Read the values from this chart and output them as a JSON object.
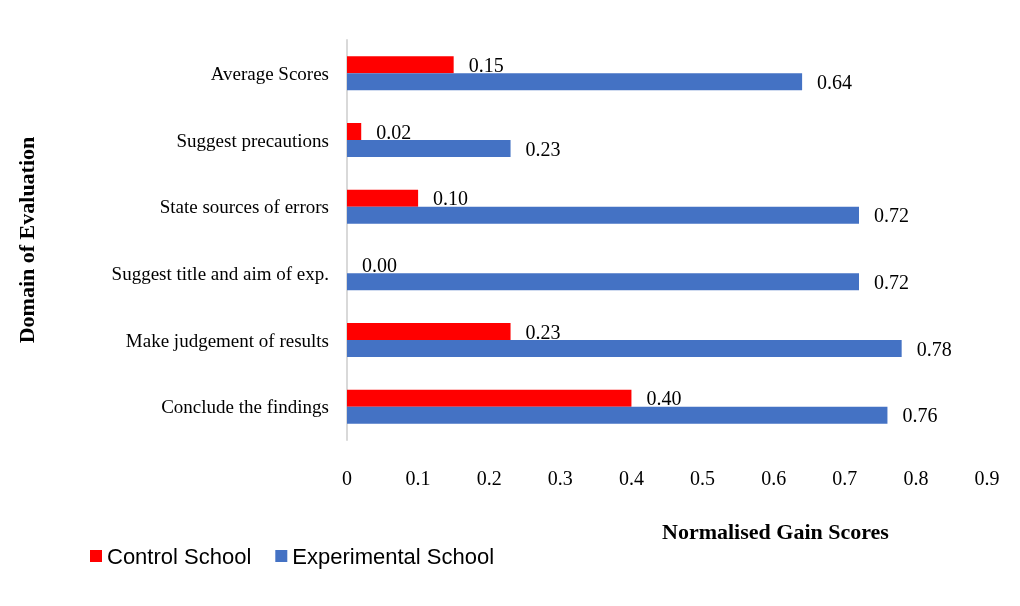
{
  "chart_data": {
    "type": "bar",
    "orientation": "horizontal",
    "xlabel": "Normalised Gain Scores",
    "ylabel": "Domain of Evaluation",
    "categories": [
      "Average Scores",
      "Suggest precautions",
      "State sources of errors",
      "Suggest title and aim of exp.",
      "Make judgement of results",
      "Conclude the findings"
    ],
    "series": [
      {
        "name": "Control School",
        "color": "#ff0000",
        "values": [
          0.15,
          0.02,
          0.1,
          0.0,
          0.23,
          0.4
        ],
        "value_labels": [
          "0.15",
          "0.02",
          "0.10",
          "0.00",
          "0.23",
          "0.40"
        ]
      },
      {
        "name": "Experimental School",
        "color": "#4472c4",
        "values": [
          0.64,
          0.23,
          0.72,
          0.72,
          0.78,
          0.76
        ],
        "value_labels": [
          "0.64",
          "0.23",
          "0.72",
          "0.72",
          "0.78",
          "0.76"
        ]
      }
    ],
    "xlim": [
      0,
      0.9
    ],
    "xticks": [
      0,
      0.1,
      0.2,
      0.3,
      0.4,
      0.5,
      0.6,
      0.7,
      0.8,
      0.9
    ],
    "grid": false,
    "legend": "bottom left"
  }
}
